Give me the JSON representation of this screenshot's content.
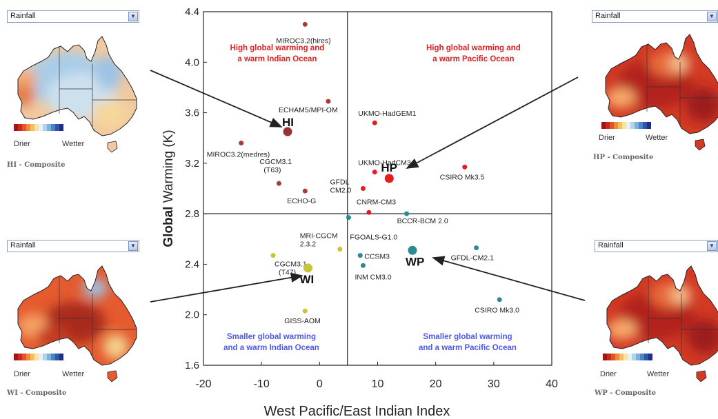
{
  "chart_data": {
    "type": "scatter",
    "xlabel": "West Pacific/East Indian Index",
    "ylabel_bold": "Global",
    "ylabel_rest": " Warming (K)",
    "xlim": [
      -20,
      40
    ],
    "ylim": [
      1.6,
      4.4
    ],
    "xticks": [
      "-20",
      "-10",
      "0",
      "10",
      "20",
      "30",
      "40"
    ],
    "yticks": [
      "1.6",
      "2.0",
      "2.4",
      "2.8",
      "3.2",
      "3.6",
      "4.0",
      "4.4"
    ],
    "divider": {
      "x": 4.8,
      "y": 2.8
    },
    "points": [
      {
        "label": "MIROC3.2(hires)",
        "x": -2.5,
        "y": 4.3,
        "group": "HI",
        "colour": "#a83a3a"
      },
      {
        "label": "ECHAM5/MPI-OM",
        "x": 1.5,
        "y": 3.69,
        "group": "HI",
        "colour": "#a83a3a"
      },
      {
        "label": "MIROC3.2(medres)",
        "x": -13.5,
        "y": 3.36,
        "group": "HI",
        "colour": "#a83a3a"
      },
      {
        "label": "CGCM3.1 (T63)",
        "x": -7,
        "y": 3.04,
        "group": "HI",
        "colour": "#a83a3a"
      },
      {
        "label": "ECHO-G",
        "x": -2.5,
        "y": 2.98,
        "group": "HI",
        "colour": "#a83a3a"
      },
      {
        "label": "UKMO-HadGEM1",
        "x": 9.5,
        "y": 3.52,
        "group": "HP",
        "colour": "#e21f1f"
      },
      {
        "label": "UKMO-HadCM3",
        "x": 9.5,
        "y": 3.13,
        "group": "HP",
        "colour": "#e21f1f"
      },
      {
        "label": "GFDL CM2.0",
        "x": 7.5,
        "y": 3.0,
        "group": "HP",
        "colour": "#e21f1f"
      },
      {
        "label": "CSIRO Mk3.5",
        "x": 25,
        "y": 3.17,
        "group": "HP",
        "colour": "#e21f1f"
      },
      {
        "label": "CNRM-CM3",
        "x": 8.5,
        "y": 2.81,
        "group": "HP",
        "colour": "#e21f1f"
      },
      {
        "label": "FGOALS-G1.0",
        "x": 5,
        "y": 2.77,
        "group": "WP",
        "colour": "#2a8b93"
      },
      {
        "label": "BCCR-BCM 2.0",
        "x": 15,
        "y": 2.8,
        "group": "WP",
        "colour": "#2a8b93"
      },
      {
        "label": "CCSM3",
        "x": 7,
        "y": 2.47,
        "group": "WP",
        "colour": "#2a8b93"
      },
      {
        "label": "INM CM3.0",
        "x": 7.5,
        "y": 2.39,
        "group": "WP",
        "colour": "#2a8b93"
      },
      {
        "label": "GFDL-CM2.1",
        "x": 27,
        "y": 2.53,
        "group": "WP",
        "colour": "#2a8b93"
      },
      {
        "label": "CSIRO Mk3.0",
        "x": 31,
        "y": 2.12,
        "group": "WP",
        "colour": "#2a8b93"
      },
      {
        "label": "MRI-CGCM 2.3.2",
        "x": 3.5,
        "y": 2.52,
        "group": "WI",
        "colour": "#c8c43a"
      },
      {
        "label": "CGCM3.1 (T47)",
        "x": -8,
        "y": 2.47,
        "group": "WI",
        "colour": "#c8c43a"
      },
      {
        "label": "GISS-AOM",
        "x": -2.5,
        "y": 2.03,
        "group": "WI",
        "colour": "#c8c43a"
      }
    ],
    "composites": [
      {
        "label": "HI",
        "x": -5.5,
        "y": 3.45,
        "colour": "#9a3232"
      },
      {
        "label": "HP",
        "x": 12,
        "y": 3.08,
        "colour": "#e21f1f"
      },
      {
        "label": "WP",
        "x": 16,
        "y": 2.51,
        "colour": "#2a8b93"
      },
      {
        "label": "WI",
        "x": -2,
        "y": 2.37,
        "colour": "#c8c43a"
      }
    ],
    "quadrant_notes": [
      {
        "lines": [
          "High global warming and",
          "a warm Indian Ocean"
        ],
        "colour": "#e01f1f"
      },
      {
        "lines": [
          "High global warming and",
          "a warm Pacific Ocean"
        ],
        "colour": "#e01f1f"
      },
      {
        "lines": [
          "Smaller global warming",
          "and a warm Indian Ocean"
        ],
        "colour": "#4d57f0"
      },
      {
        "lines": [
          "Smaller global warming",
          "and a warm Pacific Ocean"
        ],
        "colour": "#4d57f0"
      }
    ]
  },
  "maps": [
    {
      "select_value": "Rainfall",
      "caption": "HI - Composite",
      "drier": "Drier",
      "wetter": "Wetter",
      "palette": "wet"
    },
    {
      "select_value": "Rainfall",
      "caption": "HP - Composite",
      "drier": "Drier",
      "wetter": "Wetter",
      "palette": "dry"
    },
    {
      "select_value": "Rainfall",
      "caption": "WI - Composite",
      "drier": "Drier",
      "wetter": "Wetter",
      "palette": "mixed"
    },
    {
      "select_value": "Rainfall",
      "caption": "WP - Composite",
      "drier": "Drier",
      "wetter": "Wetter",
      "palette": "dry"
    }
  ],
  "colorbar": [
    "#a0151b",
    "#c92a1f",
    "#e2532b",
    "#ef8a3a",
    "#f6bd60",
    "#fbe39b",
    "#e9f1f4",
    "#b5d3e8",
    "#7fb0d8",
    "#4f83c2",
    "#2d57a8",
    "#1d2f8a"
  ]
}
